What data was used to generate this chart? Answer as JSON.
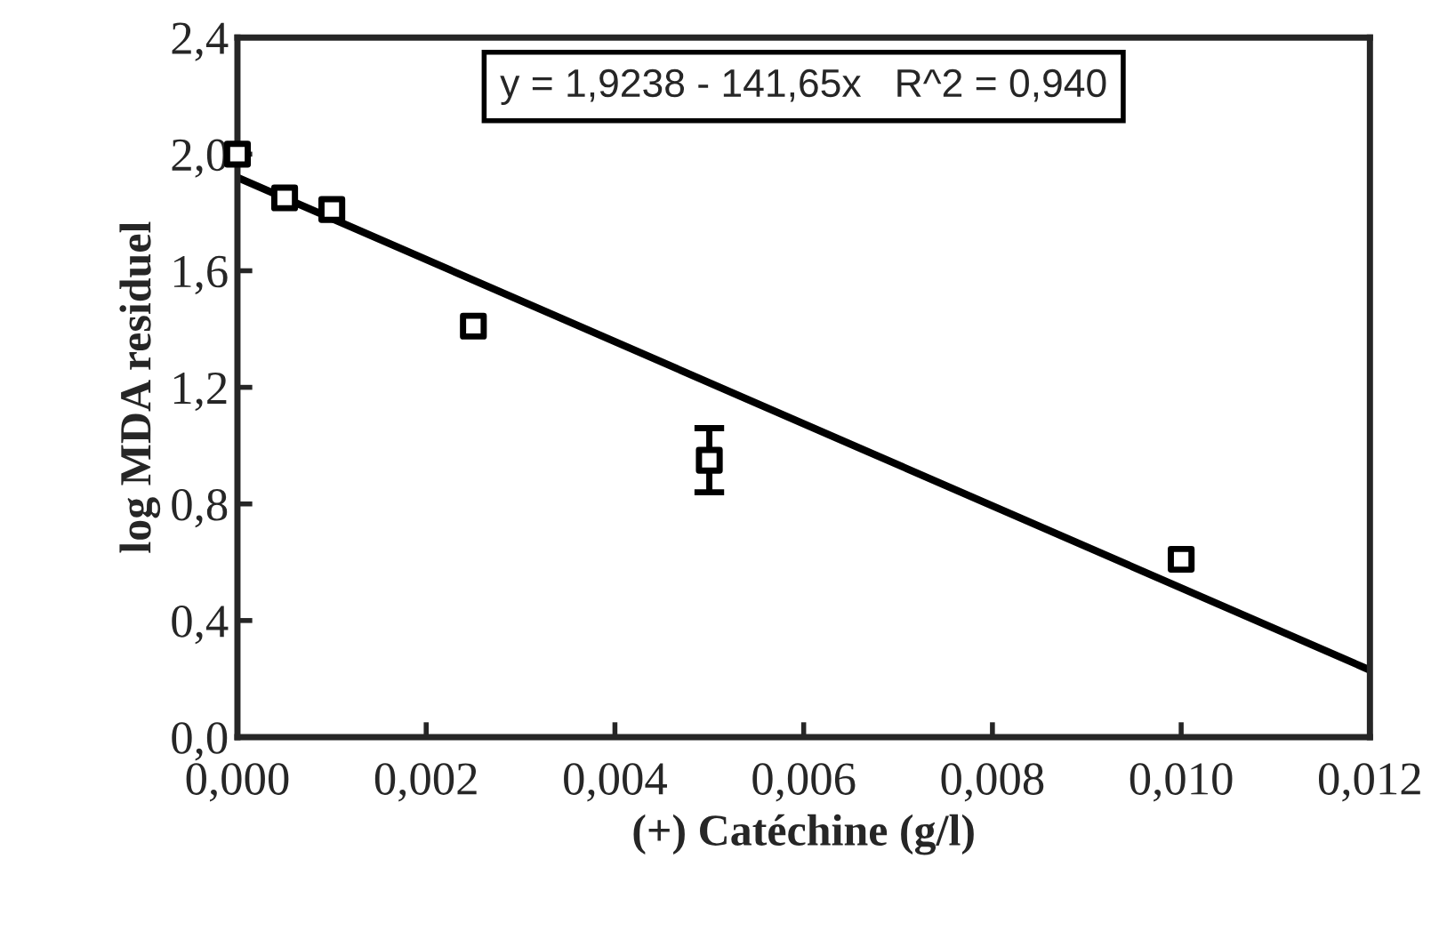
{
  "chart_data": {
    "type": "scatter",
    "xlabel": "(+) Catéchine (g/l)",
    "ylabel": "log MDA residuel",
    "annotations": [
      "y = 1,9238 - 141,65x   R^2 = 0,940"
    ],
    "series": [
      {
        "color": "#000000",
        "marker": "square",
        "x": [
          0,
          0.0005,
          0.001,
          0.0025,
          0.005,
          0.01
        ],
        "values": [
          2.0,
          1.85,
          1.81,
          1.41,
          0.95,
          0.61
        ],
        "errors": [
          null,
          null,
          null,
          null,
          0.11,
          null
        ]
      },
      {
        "type": "line",
        "color": "#000000",
        "x": [
          0,
          0.012
        ],
        "values": [
          1.92,
          0.23
        ]
      }
    ],
    "xlim": [
      0,
      0.012
    ],
    "xticks": [
      {
        "value": 0,
        "label": "0,000"
      },
      {
        "value": 0.002,
        "label": "0,002"
      },
      {
        "value": 0.004,
        "label": "0,004"
      },
      {
        "value": 0.006,
        "label": "0,006"
      },
      {
        "value": 0.008,
        "label": "0,008"
      },
      {
        "value": 0.01,
        "label": "0,010"
      },
      {
        "value": 0.012,
        "label": "0,012"
      }
    ],
    "ylim": [
      0,
      2.4
    ],
    "yticks": [
      {
        "value": 0,
        "label": "0,0"
      },
      {
        "value": 0.4,
        "label": "0,4"
      },
      {
        "value": 0.8,
        "label": "0,8"
      },
      {
        "value": 1.2,
        "label": "1,2"
      },
      {
        "value": 1.6,
        "label": "1,6"
      },
      {
        "value": 2.0,
        "label": "2,0"
      },
      {
        "value": 2.4,
        "label": "2,4"
      }
    ],
    "grid": false,
    "legend": false
  }
}
